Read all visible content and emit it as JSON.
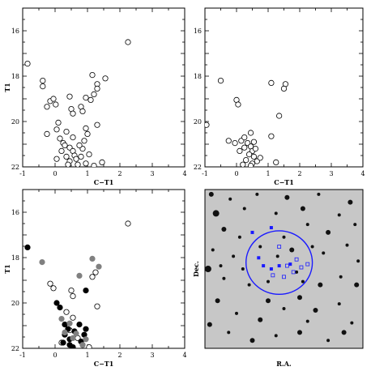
{
  "chart_data": [
    {
      "type": "scatter",
      "panel": "top-left",
      "xlabel": "C−T1",
      "ylabel": "T1",
      "xlim": [
        -1,
        4
      ],
      "ylim": [
        22,
        15
      ],
      "y_inverted": true,
      "x_ticks": [
        -1,
        0,
        1,
        2,
        3,
        4
      ],
      "y_ticks": [
        16,
        18,
        20,
        22
      ],
      "series": [
        {
          "marker": "open-circle",
          "points": [
            [
              -0.85,
              17.45
            ],
            [
              -0.38,
              18.2
            ],
            [
              -0.38,
              18.45
            ],
            [
              -0.15,
              19.1
            ],
            [
              -0.05,
              19.0
            ],
            [
              -0.25,
              19.35
            ],
            [
              0.02,
              19.25
            ],
            [
              0.45,
              18.9
            ],
            [
              0.5,
              19.45
            ],
            [
              0.55,
              19.65
            ],
            [
              0.8,
              19.35
            ],
            [
              0.85,
              19.55
            ],
            [
              0.95,
              18.95
            ],
            [
              1.15,
              17.95
            ],
            [
              1.3,
              18.35
            ],
            [
              1.3,
              18.55
            ],
            [
              1.2,
              18.8
            ],
            [
              1.1,
              19.05
            ],
            [
              1.55,
              18.1
            ],
            [
              2.25,
              16.5
            ],
            [
              1.3,
              20.15
            ],
            [
              -0.25,
              20.55
            ],
            [
              0.1,
              20.05
            ],
            [
              0.05,
              20.35
            ],
            [
              0.15,
              20.75
            ],
            [
              0.35,
              20.45
            ],
            [
              0.25,
              20.95
            ],
            [
              0.45,
              21.15
            ],
            [
              0.3,
              21.05
            ],
            [
              0.55,
              21.3
            ],
            [
              0.35,
              21.55
            ],
            [
              0.6,
              21.5
            ],
            [
              0.45,
              21.75
            ],
            [
              0.65,
              21.65
            ],
            [
              0.8,
              21.55
            ],
            [
              0.85,
              21.2
            ],
            [
              0.9,
              20.85
            ],
            [
              0.75,
              21.05
            ],
            [
              0.55,
              20.7
            ],
            [
              1.05,
              21.45
            ],
            [
              0.95,
              21.85
            ],
            [
              1.2,
              21.95
            ],
            [
              1.45,
              21.8
            ],
            [
              0.2,
              21.3
            ],
            [
              0.4,
              21.9
            ],
            [
              0.7,
              21.9
            ],
            [
              0.05,
              21.65
            ],
            [
              0.95,
              20.3
            ],
            [
              1.0,
              20.55
            ]
          ]
        }
      ]
    },
    {
      "type": "scatter",
      "panel": "top-right",
      "xlabel": "C−T1",
      "ylabel": "",
      "xlim": [
        -1,
        4
      ],
      "ylim": [
        22,
        15
      ],
      "y_inverted": true,
      "x_ticks": [
        -1,
        0,
        1,
        2,
        3,
        4
      ],
      "y_ticks": [
        16,
        18,
        20,
        22
      ],
      "series": [
        {
          "marker": "open-circle",
          "points": [
            [
              -0.95,
              20.15
            ],
            [
              -0.5,
              18.2
            ],
            [
              0.0,
              19.05
            ],
            [
              0.05,
              19.25
            ],
            [
              1.1,
              18.3
            ],
            [
              1.55,
              18.35
            ],
            [
              1.5,
              18.55
            ],
            [
              1.35,
              19.75
            ],
            [
              1.1,
              20.65
            ],
            [
              1.25,
              21.8
            ],
            [
              0.45,
              20.5
            ],
            [
              0.55,
              20.9
            ],
            [
              -0.25,
              20.85
            ],
            [
              -0.05,
              20.95
            ],
            [
              0.15,
              20.85
            ],
            [
              0.25,
              20.7
            ],
            [
              0.35,
              20.95
            ],
            [
              0.45,
              21.1
            ],
            [
              0.25,
              21.15
            ],
            [
              0.5,
              21.3
            ],
            [
              0.4,
              21.45
            ],
            [
              0.55,
              21.55
            ],
            [
              0.3,
              21.7
            ],
            [
              0.5,
              21.85
            ],
            [
              0.1,
              21.3
            ],
            [
              0.65,
              21.75
            ],
            [
              0.45,
              21.95
            ],
            [
              0.2,
              21.9
            ],
            [
              0.75,
              21.6
            ],
            [
              0.6,
              21.2
            ]
          ]
        }
      ]
    },
    {
      "type": "scatter",
      "panel": "bottom-left",
      "xlabel": "C−T1",
      "ylabel": "T1",
      "xlim": [
        -1,
        4
      ],
      "ylim": [
        22,
        15
      ],
      "y_inverted": true,
      "x_ticks": [
        -1,
        0,
        1,
        2,
        3,
        4
      ],
      "y_ticks": [
        16,
        18,
        20,
        22
      ],
      "series": [
        {
          "marker": "open-circle",
          "points": [
            [
              -0.15,
              19.15
            ],
            [
              -0.05,
              19.35
            ],
            [
              0.5,
              19.45
            ],
            [
              0.55,
              19.7
            ],
            [
              1.15,
              18.85
            ],
            [
              1.25,
              18.65
            ],
            [
              2.25,
              16.5
            ],
            [
              1.3,
              20.15
            ],
            [
              0.55,
              20.65
            ],
            [
              0.35,
              20.4
            ],
            [
              0.45,
              21.2
            ],
            [
              0.7,
              21.55
            ],
            [
              0.85,
              21.85
            ],
            [
              1.05,
              21.95
            ],
            [
              0.2,
              21.75
            ]
          ]
        },
        {
          "marker": "filled-circle-black",
          "points": [
            [
              -0.85,
              17.55
            ],
            [
              0.05,
              20.0
            ],
            [
              0.15,
              20.2
            ],
            [
              0.95,
              19.45
            ],
            [
              0.3,
              20.95
            ],
            [
              0.4,
              21.15
            ],
            [
              0.3,
              21.4
            ],
            [
              0.45,
              21.6
            ],
            [
              0.25,
              21.75
            ],
            [
              0.55,
              21.95
            ],
            [
              0.8,
              21.7
            ],
            [
              0.9,
              21.4
            ],
            [
              0.95,
              21.15
            ],
            [
              0.75,
              20.95
            ],
            [
              0.45,
              21.85
            ],
            [
              0.6,
              21.25
            ]
          ]
        },
        {
          "marker": "filled-circle-gray",
          "points": [
            [
              -0.4,
              18.2
            ],
            [
              0.75,
              18.8
            ],
            [
              1.15,
              18.05
            ],
            [
              1.35,
              18.4
            ],
            [
              0.2,
              20.7
            ],
            [
              0.45,
              20.9
            ],
            [
              0.65,
              21.35
            ],
            [
              0.55,
              21.55
            ],
            [
              0.85,
              21.85
            ],
            [
              0.3,
              21.3
            ],
            [
              0.95,
              21.6
            ]
          ]
        }
      ]
    },
    {
      "type": "image",
      "panel": "bottom-right",
      "xlabel": "R.A.",
      "ylabel": "Dec.",
      "overlay": {
        "circle_color": "#1a1aff",
        "marker_color": "#1a1aff",
        "filled_squares": [
          [
            0.3,
            0.27
          ],
          [
            0.42,
            0.24
          ],
          [
            0.34,
            0.43
          ],
          [
            0.37,
            0.48
          ],
          [
            0.42,
            0.5
          ],
          [
            0.47,
            0.48
          ],
          [
            0.54,
            0.47
          ]
        ],
        "open_squares": [
          [
            0.47,
            0.36
          ],
          [
            0.52,
            0.48
          ],
          [
            0.43,
            0.54
          ],
          [
            0.5,
            0.55
          ],
          [
            0.56,
            0.52
          ],
          [
            0.61,
            0.49
          ],
          [
            0.65,
            0.47
          ],
          [
            0.58,
            0.44
          ]
        ]
      },
      "stars": [
        [
          0.04,
          0.03,
          3
        ],
        [
          0.16,
          0.06,
          2
        ],
        [
          0.33,
          0.03,
          2
        ],
        [
          0.52,
          0.05,
          3
        ],
        [
          0.72,
          0.03,
          2
        ],
        [
          0.92,
          0.08,
          3
        ],
        [
          0.07,
          0.15,
          4
        ],
        [
          0.25,
          0.12,
          2
        ],
        [
          0.45,
          0.15,
          2
        ],
        [
          0.62,
          0.12,
          3
        ],
        [
          0.85,
          0.16,
          2
        ],
        [
          0.95,
          0.22,
          2
        ],
        [
          0.12,
          0.25,
          3
        ],
        [
          0.22,
          0.3,
          2
        ],
        [
          0.65,
          0.22,
          2
        ],
        [
          0.78,
          0.27,
          3
        ],
        [
          0.05,
          0.38,
          2
        ],
        [
          0.18,
          0.42,
          2
        ],
        [
          0.9,
          0.35,
          2
        ],
        [
          0.75,
          0.4,
          2
        ],
        [
          0.02,
          0.5,
          4
        ],
        [
          0.12,
          0.56,
          2
        ],
        [
          0.28,
          0.6,
          2
        ],
        [
          0.4,
          0.7,
          3
        ],
        [
          0.62,
          0.58,
          2
        ],
        [
          0.73,
          0.6,
          3
        ],
        [
          0.86,
          0.55,
          2
        ],
        [
          0.96,
          0.6,
          3
        ],
        [
          0.08,
          0.7,
          3
        ],
        [
          0.2,
          0.78,
          2
        ],
        [
          0.35,
          0.82,
          3
        ],
        [
          0.5,
          0.75,
          2
        ],
        [
          0.6,
          0.68,
          3
        ],
        [
          0.7,
          0.76,
          3
        ],
        [
          0.85,
          0.72,
          2
        ],
        [
          0.93,
          0.84,
          2
        ],
        [
          0.03,
          0.85,
          3
        ],
        [
          0.15,
          0.9,
          2
        ],
        [
          0.3,
          0.95,
          3
        ],
        [
          0.45,
          0.92,
          2
        ],
        [
          0.6,
          0.9,
          3
        ],
        [
          0.78,
          0.95,
          2
        ],
        [
          0.88,
          0.9,
          3
        ],
        [
          0.5,
          0.3,
          2
        ],
        [
          0.35,
          0.36,
          2
        ],
        [
          0.55,
          0.38,
          3
        ],
        [
          0.46,
          0.42,
          2
        ],
        [
          0.58,
          0.52,
          2
        ],
        [
          0.4,
          0.58,
          2
        ],
        [
          0.68,
          0.36,
          2
        ],
        [
          0.24,
          0.5,
          2
        ],
        [
          0.97,
          0.45,
          2
        ],
        [
          0.1,
          0.48,
          2
        ],
        [
          0.65,
          0.83,
          2
        ]
      ]
    }
  ]
}
